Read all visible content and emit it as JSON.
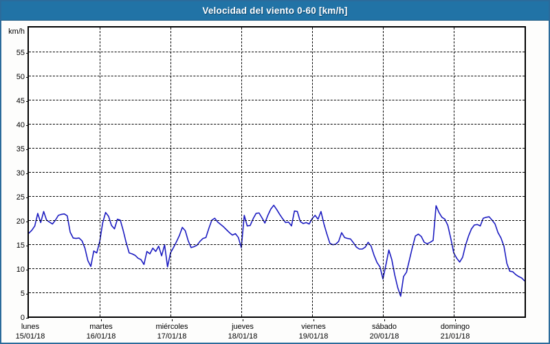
{
  "window": {
    "title": "Velocidad del viento 0-60 [km/h]"
  },
  "colors": {
    "frame_border": "#2b6b9b",
    "titlebar_bg": "#2173a6",
    "title_text": "#ffffff",
    "axis": "#000000",
    "grid": "#000000",
    "line": "#1a1ac0",
    "plot_bg": "#ffffff"
  },
  "chart_data": {
    "type": "line",
    "title": "Velocidad del viento 0-60 [km/h]",
    "xlabel": "",
    "ylabel": "km/h",
    "ylim": [
      0,
      60
    ],
    "yticks": [
      0,
      5,
      10,
      15,
      20,
      25,
      30,
      35,
      40,
      45,
      50,
      55
    ],
    "grid": "dashed",
    "legend": "none",
    "x_unit": "hours",
    "x_range_hours": [
      0,
      168
    ],
    "days": [
      {
        "name": "lunes",
        "date": "15/01/18"
      },
      {
        "name": "martes",
        "date": "16/01/18"
      },
      {
        "name": "miércoles",
        "date": "17/01/18"
      },
      {
        "name": "jueves",
        "date": "18/01/18"
      },
      {
        "name": "viernes",
        "date": "19/01/18"
      },
      {
        "name": "sábado",
        "date": "20/01/18"
      },
      {
        "name": "domingo",
        "date": "21/01/18"
      }
    ],
    "series": [
      {
        "name": "Velocidad del viento",
        "x_step_hours": 1,
        "values": [
          17.3,
          17.9,
          18.8,
          21.4,
          19.5,
          21.8,
          20.0,
          19.6,
          19.2,
          20.0,
          21.0,
          21.2,
          21.3,
          20.9,
          17.5,
          16.3,
          16.2,
          16.3,
          15.7,
          14.2,
          11.6,
          10.4,
          13.6,
          13.2,
          15.5,
          19.4,
          21.6,
          20.8,
          18.9,
          18.2,
          20.2,
          20.0,
          17.8,
          15.3,
          13.2,
          13.0,
          12.7,
          12.1,
          11.8,
          10.8,
          13.5,
          13.0,
          14.2,
          13.5,
          14.6,
          12.6,
          14.9,
          10.3,
          13.2,
          14.3,
          15.5,
          16.8,
          18.5,
          17.8,
          15.7,
          14.3,
          14.5,
          14.8,
          15.6,
          16.2,
          16.4,
          18.3,
          20.0,
          20.4,
          19.6,
          19.1,
          18.6,
          18.0,
          17.4,
          16.9,
          17.2,
          16.4,
          14.3,
          21.0,
          18.8,
          18.9,
          20.3,
          21.4,
          21.5,
          20.5,
          19.4,
          21.0,
          22.3,
          23.1,
          22.2,
          21.2,
          20.3,
          19.5,
          19.6,
          18.8,
          21.9,
          21.8,
          19.7,
          19.3,
          19.5,
          19.2,
          20.3,
          21.0,
          20.2,
          21.8,
          19.2,
          17.1,
          15.2,
          14.9,
          15.0,
          15.6,
          17.4,
          16.4,
          16.2,
          16.1,
          15.3,
          14.4,
          14.0,
          14.0,
          14.4,
          15.4,
          14.6,
          12.7,
          11.2,
          10.3,
          7.8,
          10.7,
          13.8,
          11.8,
          8.6,
          6.0,
          4.2,
          8.3,
          9.2,
          11.8,
          14.4,
          16.7,
          17.1,
          16.6,
          15.4,
          15.1,
          15.4,
          15.8,
          23.0,
          21.6,
          20.6,
          20.2,
          18.9,
          16.2,
          13.2,
          12.1,
          11.3,
          12.3,
          14.8,
          16.7,
          18.2,
          19.0,
          19.1,
          18.8,
          20.4,
          20.6,
          20.7,
          20.0,
          19.2,
          17.4,
          16.3,
          14.6,
          11.0,
          9.4,
          9.3,
          8.7,
          8.3,
          8.0,
          7.4
        ]
      }
    ]
  }
}
